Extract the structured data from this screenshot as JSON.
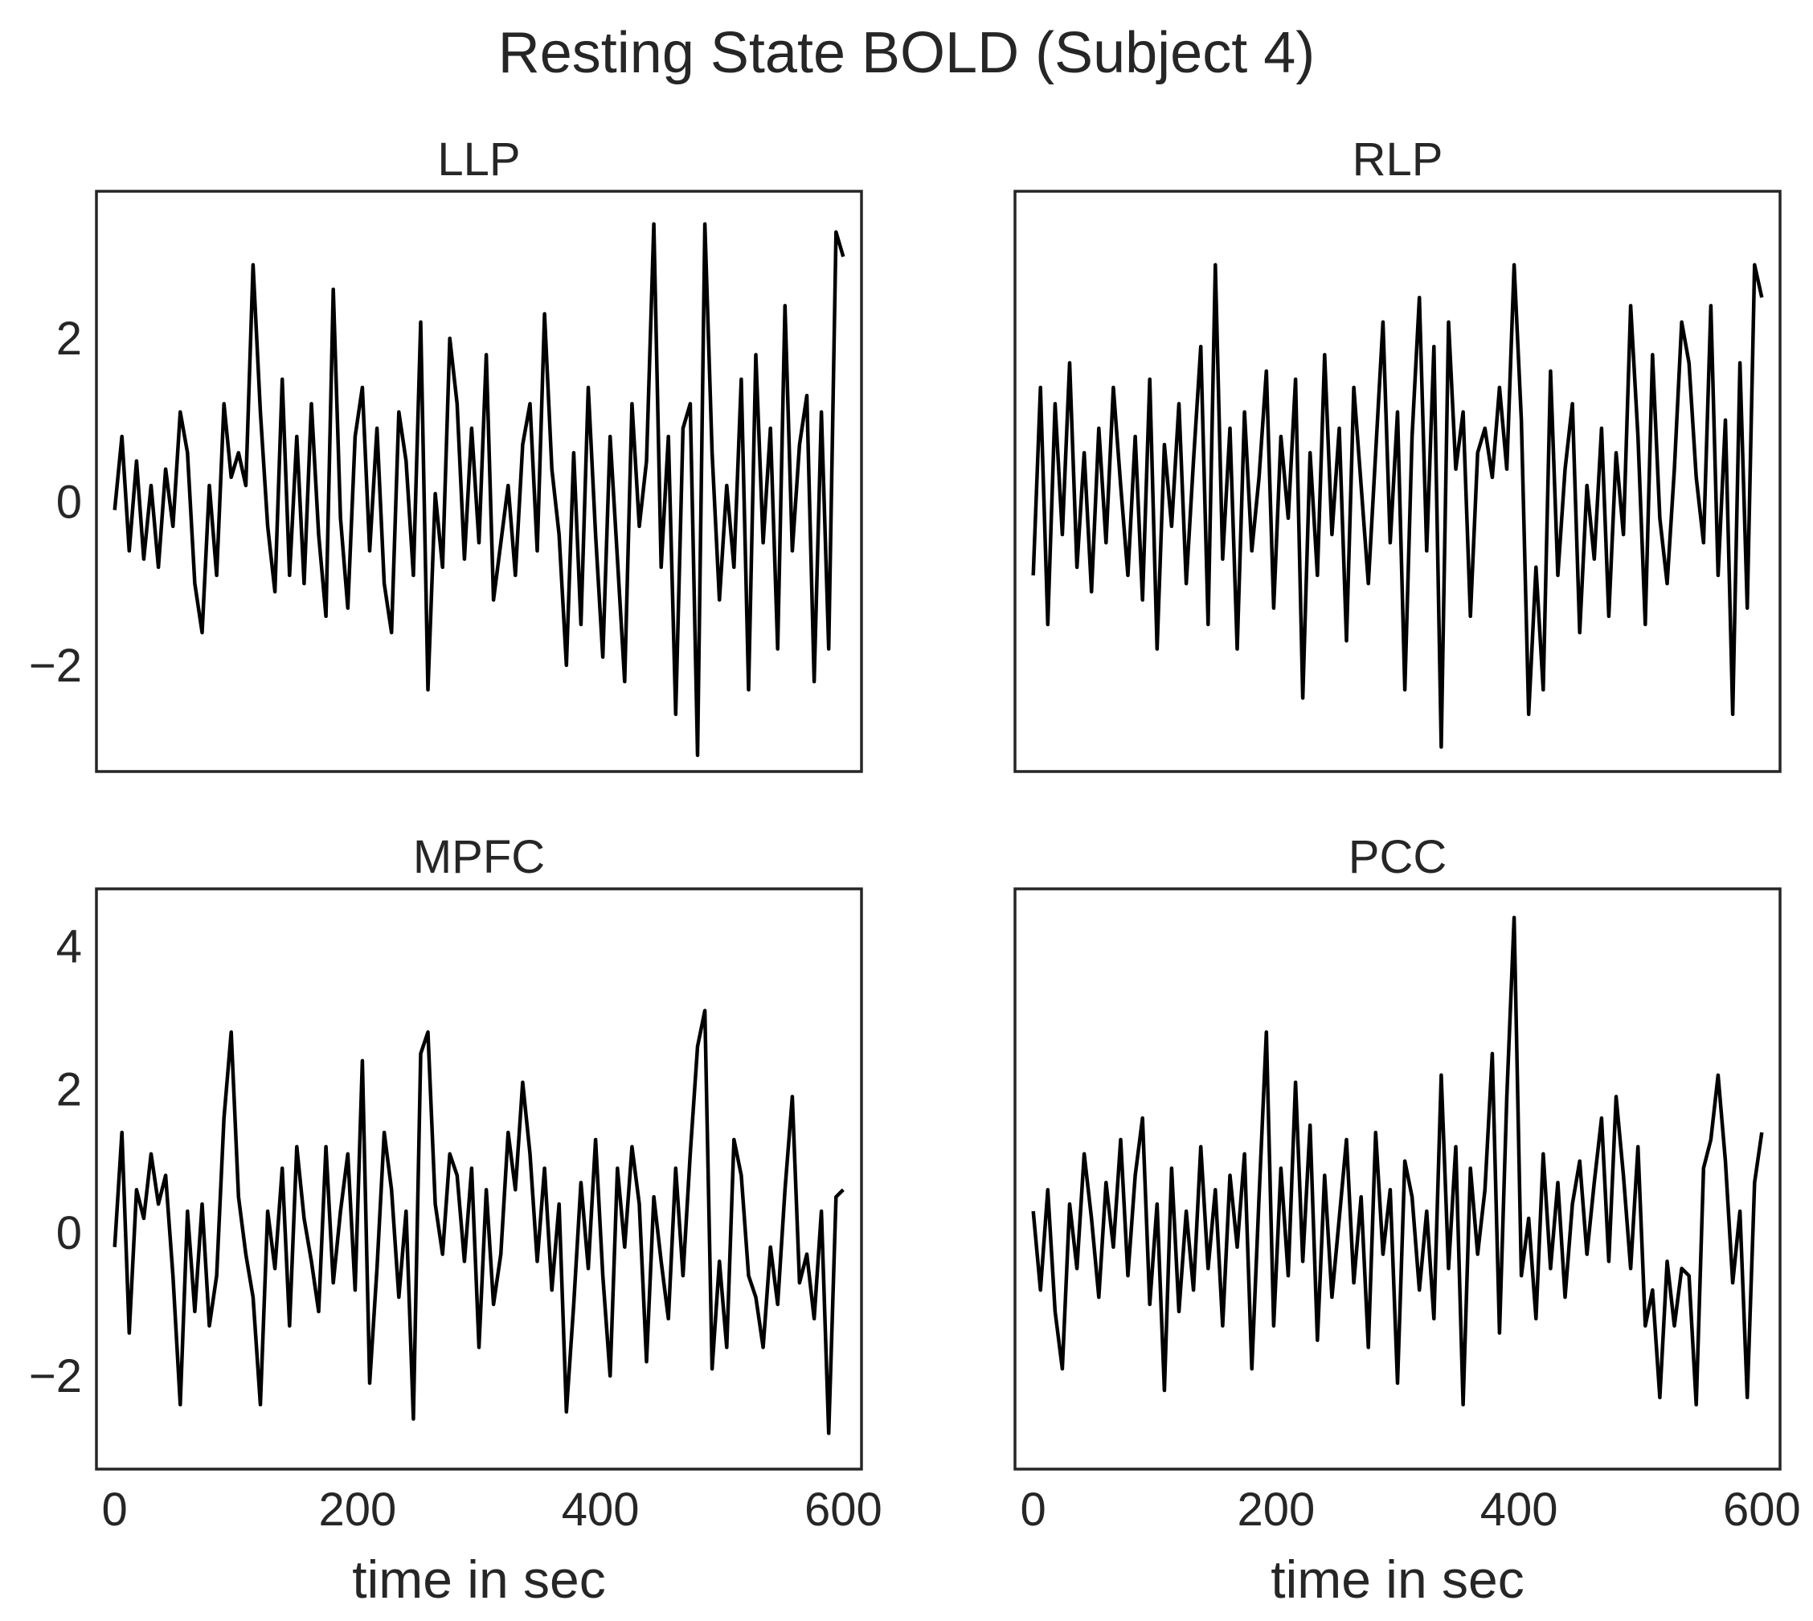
{
  "figure": {
    "title": "Resting State BOLD (Subject 4)"
  },
  "chart_data": [
    {
      "type": "line",
      "title": "LLP",
      "xlabel": "",
      "ylabel": "",
      "xlim": [
        -15,
        615
      ],
      "ylim": [
        -3.3,
        3.8
      ],
      "xticks": [],
      "yticks": [
        -2,
        0,
        2
      ],
      "ytick_labels": [
        "−2",
        "0",
        "2"
      ],
      "grid": false,
      "line_color": "#000000",
      "x": [
        0,
        6,
        12,
        18,
        24,
        30,
        36,
        42,
        48,
        54,
        60,
        66,
        72,
        78,
        84,
        90,
        96,
        102,
        108,
        114,
        120,
        126,
        132,
        138,
        144,
        150,
        156,
        162,
        168,
        174,
        180,
        186,
        192,
        198,
        204,
        210,
        216,
        222,
        228,
        234,
        240,
        246,
        252,
        258,
        264,
        270,
        276,
        282,
        288,
        294,
        300,
        306,
        312,
        318,
        324,
        330,
        336,
        342,
        348,
        354,
        360,
        366,
        372,
        378,
        384,
        390,
        396,
        402,
        408,
        414,
        420,
        426,
        432,
        438,
        444,
        450,
        456,
        462,
        468,
        474,
        480,
        486,
        492,
        498,
        504,
        510,
        516,
        522,
        528,
        534,
        540,
        546,
        552,
        558,
        564,
        570,
        576,
        582,
        588,
        594,
        600
      ],
      "y": [
        -0.1,
        0.8,
        -0.6,
        0.5,
        -0.7,
        0.2,
        -0.8,
        0.4,
        -0.3,
        1.1,
        0.6,
        -1.0,
        -1.6,
        0.2,
        -0.9,
        1.2,
        0.3,
        0.6,
        0.2,
        2.9,
        1.1,
        -0.3,
        -1.1,
        1.5,
        -0.9,
        0.8,
        -1.0,
        1.2,
        -0.4,
        -1.4,
        2.6,
        -0.2,
        -1.3,
        0.8,
        1.4,
        -0.6,
        0.9,
        -1.0,
        -1.6,
        1.1,
        0.5,
        -0.9,
        2.2,
        -2.3,
        0.1,
        -0.8,
        2.0,
        1.2,
        -0.7,
        0.9,
        -0.5,
        1.8,
        -1.2,
        -0.5,
        0.2,
        -0.9,
        0.7,
        1.2,
        -0.6,
        2.3,
        0.4,
        -0.4,
        -2.0,
        0.6,
        -1.5,
        1.4,
        -0.4,
        -1.9,
        0.8,
        -0.7,
        -2.2,
        1.2,
        -0.3,
        0.5,
        3.4,
        -0.8,
        0.8,
        -2.6,
        0.9,
        1.2,
        -3.1,
        3.4,
        0.6,
        -1.2,
        0.2,
        -0.8,
        1.5,
        -2.3,
        1.8,
        -0.5,
        0.9,
        -1.8,
        2.4,
        -0.6,
        0.7,
        1.3,
        -2.2,
        1.1,
        -1.8,
        3.3,
        3.0
      ]
    },
    {
      "type": "line",
      "title": "RLP",
      "xlabel": "",
      "ylabel": "",
      "xlim": [
        -15,
        615
      ],
      "ylim": [
        -3.3,
        3.8
      ],
      "xticks": [],
      "yticks": [],
      "grid": false,
      "line_color": "#000000",
      "x": [
        0,
        6,
        12,
        18,
        24,
        30,
        36,
        42,
        48,
        54,
        60,
        66,
        72,
        78,
        84,
        90,
        96,
        102,
        108,
        114,
        120,
        126,
        132,
        138,
        144,
        150,
        156,
        162,
        168,
        174,
        180,
        186,
        192,
        198,
        204,
        210,
        216,
        222,
        228,
        234,
        240,
        246,
        252,
        258,
        264,
        270,
        276,
        282,
        288,
        294,
        300,
        306,
        312,
        318,
        324,
        330,
        336,
        342,
        348,
        354,
        360,
        366,
        372,
        378,
        384,
        390,
        396,
        402,
        408,
        414,
        420,
        426,
        432,
        438,
        444,
        450,
        456,
        462,
        468,
        474,
        480,
        486,
        492,
        498,
        504,
        510,
        516,
        522,
        528,
        534,
        540,
        546,
        552,
        558,
        564,
        570,
        576,
        582,
        588,
        594,
        600
      ],
      "y": [
        -0.9,
        1.4,
        -1.5,
        1.2,
        -0.4,
        1.7,
        -0.8,
        0.6,
        -1.1,
        0.9,
        -0.5,
        1.4,
        0.2,
        -0.9,
        0.8,
        -1.2,
        1.5,
        -1.8,
        0.7,
        -0.3,
        1.2,
        -1.0,
        0.5,
        1.9,
        -1.5,
        2.9,
        -0.7,
        0.9,
        -1.8,
        1.1,
        -0.6,
        0.3,
        1.6,
        -1.3,
        0.8,
        -0.2,
        1.5,
        -2.4,
        0.6,
        -0.9,
        1.8,
        -0.4,
        0.9,
        -1.7,
        1.4,
        0.2,
        -1.0,
        0.6,
        2.2,
        -0.5,
        1.1,
        -2.3,
        0.8,
        2.5,
        -0.6,
        1.9,
        -3.0,
        2.2,
        0.4,
        1.1,
        -1.4,
        0.6,
        0.9,
        0.3,
        1.4,
        0.4,
        2.9,
        1.0,
        -2.6,
        -0.8,
        -2.3,
        1.6,
        -0.9,
        0.4,
        1.2,
        -1.6,
        0.2,
        -0.7,
        0.9,
        -1.4,
        0.6,
        -0.4,
        2.4,
        0.8,
        -1.5,
        1.8,
        -0.2,
        -1.0,
        0.4,
        2.2,
        1.7,
        0.3,
        -0.5,
        2.4,
        -0.9,
        1.0,
        -2.6,
        1.7,
        -1.3,
        2.9,
        2.5
      ]
    },
    {
      "type": "line",
      "title": "MPFC",
      "xlabel": "time in sec",
      "ylabel": "",
      "xlim": [
        -15,
        615
      ],
      "ylim": [
        -3.3,
        4.8
      ],
      "xticks": [
        0,
        200,
        400,
        600
      ],
      "xtick_labels": [
        "0",
        "200",
        "400",
        "600"
      ],
      "yticks": [
        -2,
        0,
        2,
        4
      ],
      "ytick_labels": [
        "−2",
        "0",
        "2",
        "4"
      ],
      "grid": false,
      "line_color": "#000000",
      "x": [
        0,
        6,
        12,
        18,
        24,
        30,
        36,
        42,
        48,
        54,
        60,
        66,
        72,
        78,
        84,
        90,
        96,
        102,
        108,
        114,
        120,
        126,
        132,
        138,
        144,
        150,
        156,
        162,
        168,
        174,
        180,
        186,
        192,
        198,
        204,
        210,
        216,
        222,
        228,
        234,
        240,
        246,
        252,
        258,
        264,
        270,
        276,
        282,
        288,
        294,
        300,
        306,
        312,
        318,
        324,
        330,
        336,
        342,
        348,
        354,
        360,
        366,
        372,
        378,
        384,
        390,
        396,
        402,
        408,
        414,
        420,
        426,
        432,
        438,
        444,
        450,
        456,
        462,
        468,
        474,
        480,
        486,
        492,
        498,
        504,
        510,
        516,
        522,
        528,
        534,
        540,
        546,
        552,
        558,
        564,
        570,
        576,
        582,
        588,
        594,
        600
      ],
      "y": [
        -0.2,
        1.4,
        -1.4,
        0.6,
        0.2,
        1.1,
        0.4,
        0.8,
        -0.6,
        -2.4,
        0.3,
        -1.1,
        0.4,
        -1.3,
        -0.6,
        1.6,
        2.8,
        0.5,
        -0.3,
        -0.9,
        -2.4,
        0.3,
        -0.5,
        0.9,
        -1.3,
        1.2,
        0.2,
        -0.4,
        -1.1,
        1.2,
        -0.7,
        0.3,
        1.1,
        -0.8,
        2.4,
        -2.1,
        -0.5,
        1.4,
        0.6,
        -0.9,
        0.3,
        -2.6,
        2.5,
        2.8,
        0.4,
        -0.3,
        1.1,
        0.8,
        -0.4,
        0.9,
        -1.6,
        0.6,
        -1.0,
        -0.3,
        1.4,
        0.6,
        2.1,
        1.1,
        -0.4,
        0.9,
        -0.8,
        0.4,
        -2.5,
        -1.0,
        0.7,
        -0.5,
        1.3,
        -0.6,
        -2.0,
        0.9,
        -0.2,
        1.2,
        0.4,
        -1.8,
        0.5,
        -0.4,
        -1.2,
        0.9,
        -0.6,
        1.1,
        2.6,
        3.1,
        -1.9,
        -0.4,
        -1.6,
        1.3,
        0.8,
        -0.6,
        -0.9,
        -1.6,
        -0.2,
        -1.0,
        0.6,
        1.9,
        -0.7,
        -0.3,
        -1.2,
        0.3,
        -2.8,
        0.5,
        0.6
      ]
    },
    {
      "type": "line",
      "title": "PCC",
      "xlabel": "time in sec",
      "ylabel": "",
      "xlim": [
        -15,
        615
      ],
      "ylim": [
        -3.3,
        4.8
      ],
      "xticks": [
        0,
        200,
        400,
        600
      ],
      "xtick_labels": [
        "0",
        "200",
        "400",
        "600"
      ],
      "yticks": [],
      "grid": false,
      "line_color": "#000000",
      "x": [
        0,
        6,
        12,
        18,
        24,
        30,
        36,
        42,
        48,
        54,
        60,
        66,
        72,
        78,
        84,
        90,
        96,
        102,
        108,
        114,
        120,
        126,
        132,
        138,
        144,
        150,
        156,
        162,
        168,
        174,
        180,
        186,
        192,
        198,
        204,
        210,
        216,
        222,
        228,
        234,
        240,
        246,
        252,
        258,
        264,
        270,
        276,
        282,
        288,
        294,
        300,
        306,
        312,
        318,
        324,
        330,
        336,
        342,
        348,
        354,
        360,
        366,
        372,
        378,
        384,
        390,
        396,
        402,
        408,
        414,
        420,
        426,
        432,
        438,
        444,
        450,
        456,
        462,
        468,
        474,
        480,
        486,
        492,
        498,
        504,
        510,
        516,
        522,
        528,
        534,
        540,
        546,
        552,
        558,
        564,
        570,
        576,
        582,
        588,
        594,
        600
      ],
      "y": [
        0.3,
        -0.8,
        0.6,
        -1.1,
        -1.9,
        0.4,
        -0.5,
        1.1,
        0.2,
        -0.9,
        0.7,
        -0.2,
        1.3,
        -0.6,
        0.8,
        1.6,
        -1.0,
        0.4,
        -2.2,
        0.9,
        -1.1,
        0.3,
        -0.8,
        1.2,
        -0.5,
        0.6,
        -1.3,
        0.8,
        -0.2,
        1.1,
        -1.9,
        0.5,
        2.8,
        -1.3,
        0.9,
        -0.6,
        2.1,
        -0.4,
        1.5,
        -1.5,
        0.8,
        -0.9,
        0.2,
        1.3,
        -0.7,
        0.5,
        -1.6,
        1.4,
        -0.3,
        0.6,
        -2.1,
        1.0,
        0.5,
        -0.8,
        0.3,
        -1.2,
        2.2,
        -0.5,
        1.2,
        -2.4,
        0.9,
        -0.3,
        0.6,
        2.5,
        -1.4,
        1.9,
        4.4,
        -0.6,
        0.2,
        -1.2,
        1.1,
        -0.5,
        0.7,
        -0.9,
        0.4,
        1.0,
        -0.3,
        0.7,
        1.6,
        -0.4,
        1.9,
        0.8,
        -0.5,
        1.2,
        -1.3,
        -0.8,
        -2.3,
        -0.4,
        -1.3,
        -0.5,
        -0.6,
        -2.4,
        0.9,
        1.3,
        2.2,
        1.0,
        -0.7,
        0.3,
        -2.3,
        0.7,
        1.4
      ]
    }
  ]
}
